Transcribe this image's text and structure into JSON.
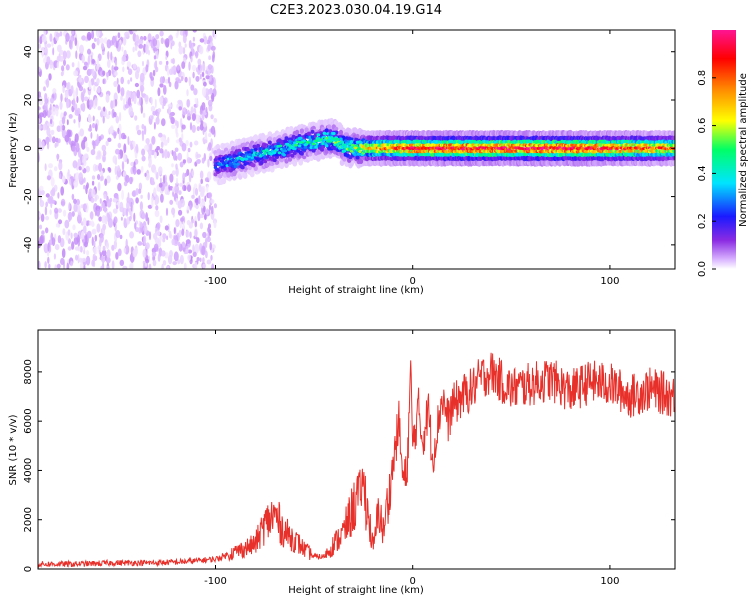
{
  "title": "C2E3.2023.030.04.19.G14",
  "colors": {
    "snr_line": "#e8302a",
    "spectrum_low": "#8a2be2",
    "axis": "#000000"
  },
  "chart_data": [
    {
      "type": "heatmap",
      "title": "C2E3.2023.030.04.19.G14",
      "xlabel": "Height of straight line (km)",
      "ylabel": "Frequency (Hz)",
      "xlim": [
        -190,
        133
      ],
      "ylim": [
        -50,
        49
      ],
      "x_ticks": [
        -100,
        0,
        100
      ],
      "x_tick_labels": [
        "-100",
        "0",
        "100"
      ],
      "y_ticks": [
        -40,
        -20,
        0,
        20,
        40
      ],
      "y_tick_labels": [
        "-40",
        "-20",
        "0",
        "20",
        "40"
      ],
      "colorbar": {
        "label": "Normalized spectral amplitude",
        "range": [
          0,
          1
        ],
        "ticks": [
          0.0,
          0.2,
          0.4,
          0.6,
          0.8
        ],
        "tick_labels": [
          "0.0",
          "0.2",
          "0.4",
          "0.6",
          "0.8"
        ],
        "colormap": [
          "#ffffff",
          "#d9b3ff",
          "#8a2be2",
          "#1a1aff",
          "#00e5ff",
          "#00ff66",
          "#ffff00",
          "#ff8c00",
          "#ff0000",
          "#ff1493"
        ]
      },
      "noise_region_x": [
        -190,
        -100
      ],
      "ridge": [
        {
          "x": -100,
          "freq": -7,
          "amp": 0.35
        },
        {
          "x": -90,
          "freq": -5,
          "amp": 0.45
        },
        {
          "x": -80,
          "freq": -3,
          "amp": 0.45
        },
        {
          "x": -70,
          "freq": -1,
          "amp": 0.45
        },
        {
          "x": -60,
          "freq": 1,
          "amp": 0.5
        },
        {
          "x": -50,
          "freq": 3,
          "amp": 0.5
        },
        {
          "x": -40,
          "freq": 4,
          "amp": 0.55
        },
        {
          "x": -35,
          "freq": 1,
          "amp": 0.55
        },
        {
          "x": -30,
          "freq": 0,
          "amp": 0.6
        },
        {
          "x": -20,
          "freq": 0,
          "amp": 0.75
        },
        {
          "x": -10,
          "freq": 0,
          "amp": 0.85
        },
        {
          "x": 0,
          "freq": 0,
          "amp": 0.9
        },
        {
          "x": 20,
          "freq": 0,
          "amp": 0.95
        },
        {
          "x": 50,
          "freq": 0,
          "amp": 0.95
        },
        {
          "x": 80,
          "freq": 0,
          "amp": 0.95
        },
        {
          "x": 100,
          "freq": 0,
          "amp": 0.9
        },
        {
          "x": 120,
          "freq": 0,
          "amp": 0.85
        },
        {
          "x": 133,
          "freq": 0,
          "amp": 0.8
        }
      ]
    },
    {
      "type": "line",
      "xlabel": "Height of straight line (km)",
      "ylabel": "SNR (10 * v/v)",
      "xlim": [
        -190,
        133
      ],
      "ylim": [
        0,
        9700
      ],
      "x_ticks": [
        -100,
        0,
        100
      ],
      "x_tick_labels": [
        "-100",
        "0",
        "100"
      ],
      "y_ticks": [
        0,
        2000,
        4000,
        6000,
        8000
      ],
      "y_tick_labels": [
        "0",
        "2000",
        "4000",
        "6000",
        "8000"
      ],
      "series": [
        {
          "x": [
            -190,
            -170,
            -150,
            -130,
            -115,
            -100,
            -90,
            -80,
            -75,
            -70,
            -65,
            -60,
            -55,
            -50,
            -45,
            -40,
            -35,
            -30,
            -25,
            -20,
            -17,
            -15,
            -12,
            -10,
            -7,
            -5,
            -3,
            -1,
            0,
            3,
            5,
            8,
            10,
            12,
            15,
            18,
            20,
            25,
            30,
            35,
            40,
            45,
            50,
            60,
            70,
            80,
            90,
            100,
            110,
            120,
            133
          ],
          "y": [
            200,
            200,
            250,
            250,
            300,
            400,
            700,
            1000,
            1800,
            2200,
            1500,
            1200,
            800,
            500,
            500,
            1000,
            1500,
            2500,
            3500,
            800,
            2500,
            1500,
            3000,
            4200,
            6000,
            3600,
            3800,
            8000,
            5000,
            6500,
            5200,
            6500,
            4500,
            5500,
            7000,
            6000,
            6600,
            7000,
            7300,
            7800,
            8000,
            7600,
            7300,
            7500,
            7700,
            7200,
            7600,
            7500,
            7000,
            7300,
            7000
          ]
        }
      ]
    }
  ]
}
